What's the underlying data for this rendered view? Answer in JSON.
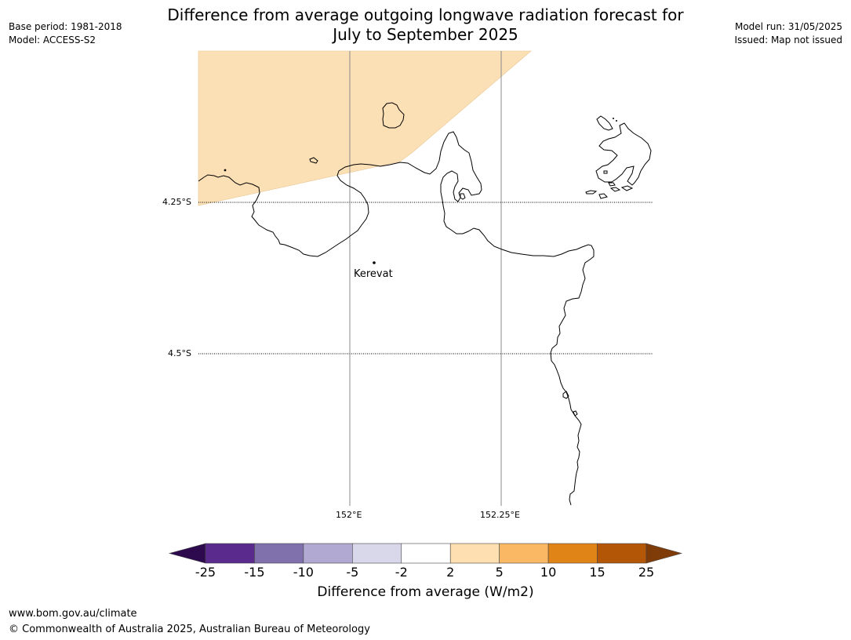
{
  "header": {
    "title_line1": "Difference from average outgoing longwave radiation forecast for",
    "title_line2": "July to September 2025",
    "base_period": "Base period: 1981-2018",
    "model": "Model: ACCESS-S2",
    "model_run": "Model run: 31/05/2025",
    "issued": "Issued: Map not issued"
  },
  "map": {
    "place_label": "Kerevat",
    "lat_labels": [
      "4.25°S",
      "4.5°S"
    ],
    "lon_labels": [
      "152°E",
      "152.25°E"
    ],
    "anomaly_fill_color": "#fce0b5"
  },
  "colorbar": {
    "label": "Difference from average (W/m2)",
    "ticks": [
      "-25",
      "-15",
      "-10",
      "-5",
      "-2",
      "2",
      "5",
      "10",
      "15",
      "25"
    ],
    "colors": [
      "#2d0a4e",
      "#5a2a8c",
      "#8071ad",
      "#b1a9d2",
      "#d9d8ea",
      "#ffffff",
      "#fedfb2",
      "#fbb864",
      "#e08417",
      "#b35706",
      "#7f3b08"
    ]
  },
  "footer": {
    "url": "www.bom.gov.au/climate",
    "copyright": "© Commonwealth of Australia 2025, Australian Bureau of Meteorology"
  }
}
